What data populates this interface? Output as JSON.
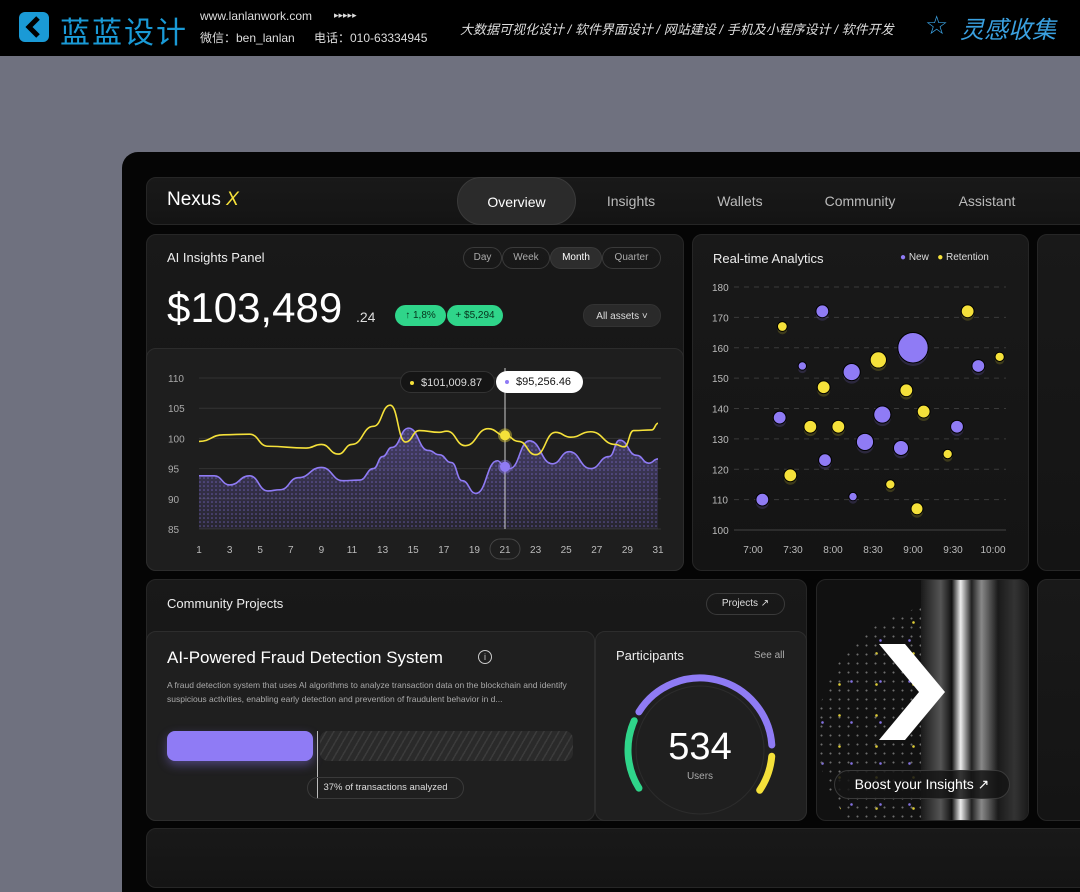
{
  "banner": {
    "brand": "蓝蓝设计",
    "website": "www.lanlanwork.com",
    "arrows": "▸▸▸▸▸",
    "wechat": "微信：ben_lanlan",
    "phone": "电话：010-63334945",
    "services": [
      "大数据可视化设计",
      "软件界面设计",
      "网站建设",
      "手机及小程序设计",
      "软件开发"
    ],
    "separator": "/",
    "collection": "灵感收集"
  },
  "nav": {
    "logo": "Nexus",
    "logo_mark": "X",
    "tabs": [
      "Overview",
      "Insights",
      "Wallets",
      "Community",
      "Assistant"
    ],
    "active": "Overview"
  },
  "insights": {
    "title": "AI Insights Panel",
    "periods": [
      "Day",
      "Week",
      "Month",
      "Quarter"
    ],
    "active_period": "Month",
    "value": "$103,489",
    "cents": ".24",
    "change_pct": "↑ 1,8%",
    "change_abs": "+ $5,294",
    "asset_filter": "All assets ˅",
    "tooltip_yellow": "$101,009.87",
    "tooltip_purple": "$95,256.46",
    "selected_day": "21"
  },
  "colors": {
    "yellow": "#f5e13a",
    "purple": "#8f7bf5",
    "green": "#2fd58a"
  },
  "chart_data": [
    {
      "type": "line",
      "title": "",
      "ylim": [
        85,
        110
      ],
      "yticks": [
        85,
        90,
        95,
        100,
        105,
        110
      ],
      "xlim": [
        1,
        31
      ],
      "xticks": [
        "1",
        "3",
        "5",
        "7",
        "9",
        "11",
        "13",
        "15",
        "17",
        "19",
        "21",
        "23",
        "25",
        "27",
        "29",
        "31"
      ],
      "grid": true,
      "series": [
        {
          "color": "#f5e13a",
          "x": [
            1,
            2.6,
            4.3,
            5.5,
            8,
            9,
            10.1,
            11,
            12.4,
            13.5,
            14.5,
            15.4,
            16.7,
            17.2,
            18.4,
            19.9,
            21,
            21.9,
            23,
            24.3,
            25.3,
            26.6,
            28.2,
            28.8,
            29.4,
            30.6,
            31
          ],
          "y": [
            99.5,
            100.6,
            100.7,
            98.7,
            98.4,
            99,
            97.4,
            99,
            102,
            105.5,
            99.4,
            101.3,
            101,
            101.2,
            98.8,
            101.6,
            100.5,
            99.5,
            97.3,
            101,
            100.2,
            101.1,
            99,
            98.6,
            101.3,
            101.4,
            102.5
          ]
        },
        {
          "color": "#8f7bf5",
          "area": true,
          "x": [
            1,
            2,
            3,
            4.3,
            5.5,
            6.3,
            7.5,
            9,
            10.4,
            11.5,
            12.4,
            13,
            13.6,
            14.7,
            16,
            16.7,
            17.5,
            18.2,
            19.1,
            20.5,
            21,
            21.3,
            22.6,
            24.1,
            25.2,
            26.6,
            27.8,
            28.5,
            29.6,
            30.4,
            31
          ],
          "y": [
            93.8,
            93.8,
            92.3,
            93.8,
            91.3,
            91.5,
            93.5,
            95.2,
            93,
            93.1,
            95,
            97,
            98.5,
            101.7,
            98,
            97.3,
            96,
            93,
            90.9,
            96.3,
            95.3,
            95,
            99.6,
            95.8,
            97.8,
            95,
            97,
            99.7,
            97.2,
            95.9,
            96.6
          ]
        }
      ]
    },
    {
      "type": "scatter",
      "title": "Real-time Analytics",
      "ylim": [
        100,
        180
      ],
      "yticks": [
        100,
        110,
        120,
        130,
        140,
        150,
        160,
        170,
        180
      ],
      "xticks": [
        "7:00",
        "7:30",
        "8:00",
        "8:30",
        "9:00",
        "9:30",
        "10:00"
      ],
      "xlim": [
        "7:00",
        "10:00"
      ],
      "grid": true,
      "legend": "top-right",
      "series": [
        {
          "name": "New",
          "color": "#8f7bf5",
          "points": [
            [
              "7:07",
              110,
              2
            ],
            [
              "7:20",
              137,
              2
            ],
            [
              "7:37",
              154,
              1
            ],
            [
              "7:52",
              172,
              2
            ],
            [
              "7:54",
              123,
              2
            ],
            [
              "8:14",
              152,
              3
            ],
            [
              "8:15",
              111,
              1
            ],
            [
              "8:24",
              129,
              3
            ],
            [
              "8:37",
              138,
              3
            ],
            [
              "8:51",
              127,
              2.5
            ],
            [
              "9:00",
              160,
              6
            ],
            [
              "9:33",
              134,
              2
            ],
            [
              "9:49",
              154,
              2
            ]
          ]
        },
        {
          "name": "Retention",
          "color": "#f5e13a",
          "points": [
            [
              "7:22",
              167,
              1.3
            ],
            [
              "7:28",
              118,
              2
            ],
            [
              "7:43",
              134,
              2
            ],
            [
              "7:53",
              147,
              2
            ],
            [
              "8:04",
              134,
              2
            ],
            [
              "8:34",
              156,
              2.8
            ],
            [
              "8:43",
              115,
              1.2
            ],
            [
              "8:55",
              146,
              2
            ],
            [
              "9:03",
              107,
              1.8
            ],
            [
              "9:08",
              139,
              2
            ],
            [
              "9:26",
              125,
              1.2
            ],
            [
              "9:41",
              172,
              2
            ],
            [
              "10:05",
              157,
              1.2
            ]
          ]
        }
      ]
    }
  ],
  "community": {
    "title": "Community Projects",
    "projects_button": "Projects ↗",
    "project": {
      "name": "AI-Powered Fraud Detection System",
      "description": "A fraud detection system that uses AI algorithms to analyze transaction data on the blockchain and identify suspicious activities, enabling early detection and prevention of fraudulent behavior in d...",
      "progress": 37,
      "progress_label": "37% of transactions analyzed"
    },
    "participants": {
      "title": "Participants",
      "see_all": "See all",
      "count": "534",
      "unit": "Users"
    }
  },
  "boost": {
    "label": "Boost your Insights ↗"
  }
}
